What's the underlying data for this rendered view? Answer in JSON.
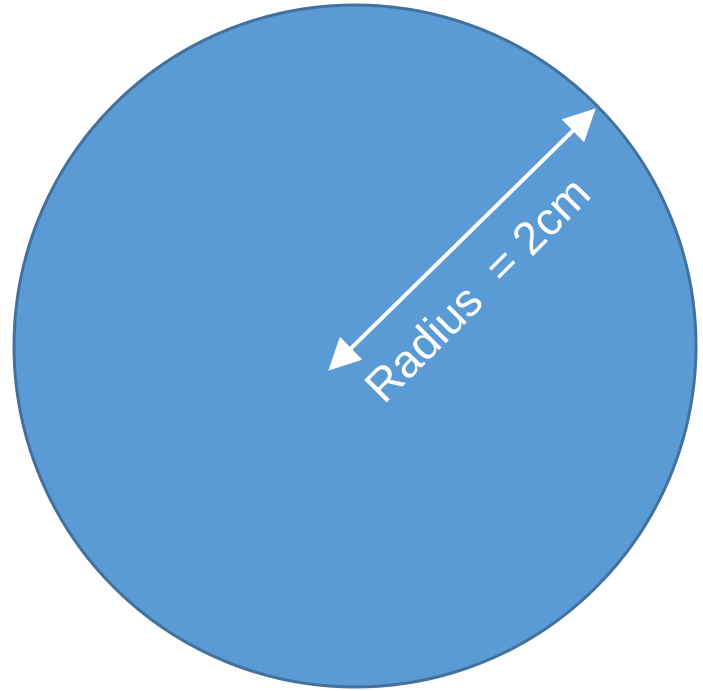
{
  "diagram": {
    "radius_label": "Radius  = 2cm"
  },
  "colors": {
    "circle_fill": "#5B9BD5",
    "circle_stroke": "#41719C",
    "arrow": "#FFFFFF",
    "background": "#FFFFFF"
  }
}
